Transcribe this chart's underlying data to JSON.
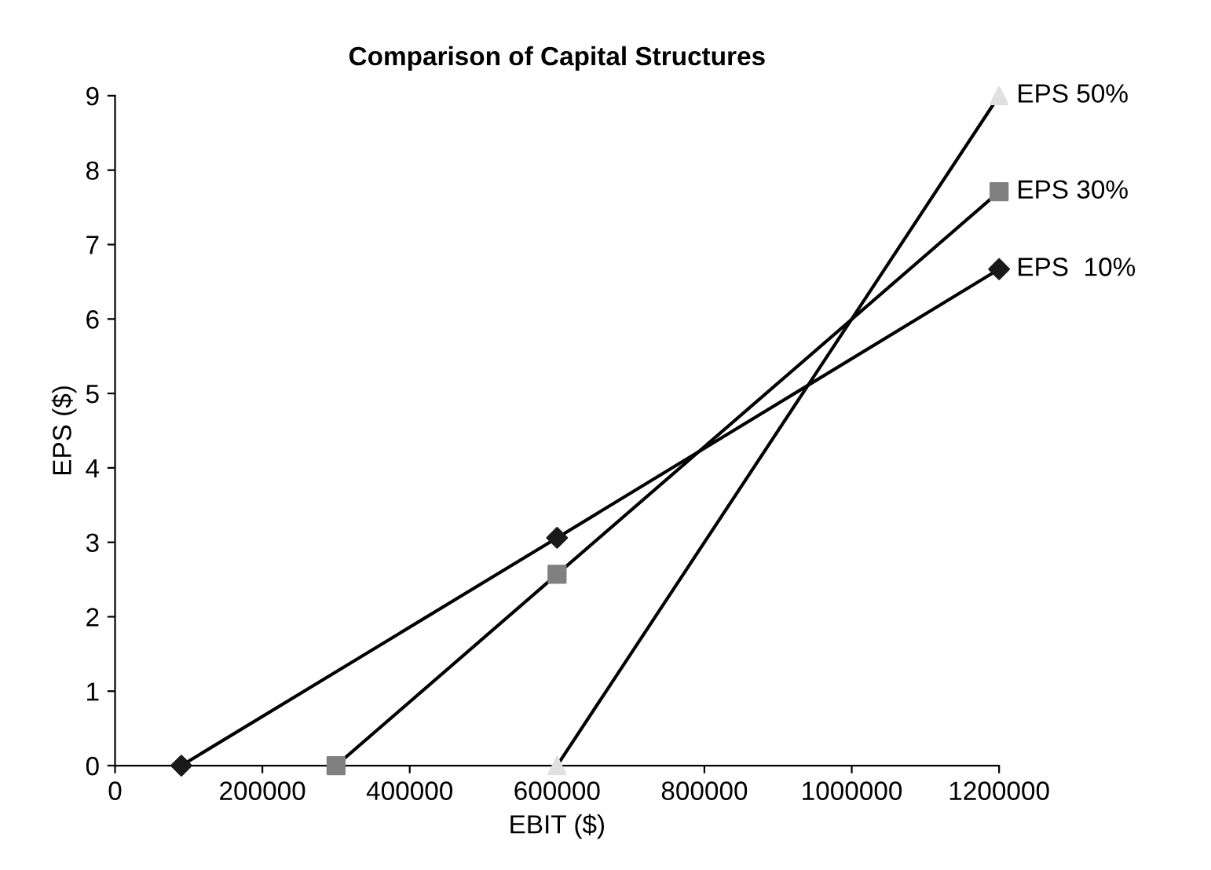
{
  "chart_data": {
    "type": "line",
    "title": "Comparison of Capital Structures",
    "xlabel": "EBIT ($)",
    "ylabel": "EPS ($)",
    "series": [
      {
        "name": "EPS  10%",
        "color": "#1a1a1a",
        "marker": "diamond",
        "x": [
          90000,
          600000,
          1200000
        ],
        "values": [
          0,
          3.06,
          6.67
        ]
      },
      {
        "name": "EPS 30%",
        "color": "#808080",
        "marker": "square",
        "x": [
          300000,
          600000,
          1200000
        ],
        "values": [
          0,
          2.57,
          7.71
        ]
      },
      {
        "name": "EPS 50%",
        "color": "#e0e0e0",
        "marker": "triangle",
        "x": [
          600000,
          1200000
        ],
        "values": [
          0,
          9.0
        ]
      }
    ],
    "xlim": [
      0,
      1200000
    ],
    "xticks": [
      0,
      200000,
      400000,
      600000,
      800000,
      1000000,
      1200000
    ],
    "ylim": [
      0,
      9
    ],
    "yticks": [
      0,
      1,
      2,
      3,
      4,
      5,
      6,
      7,
      8,
      9
    ],
    "grid": false,
    "legend": false
  }
}
